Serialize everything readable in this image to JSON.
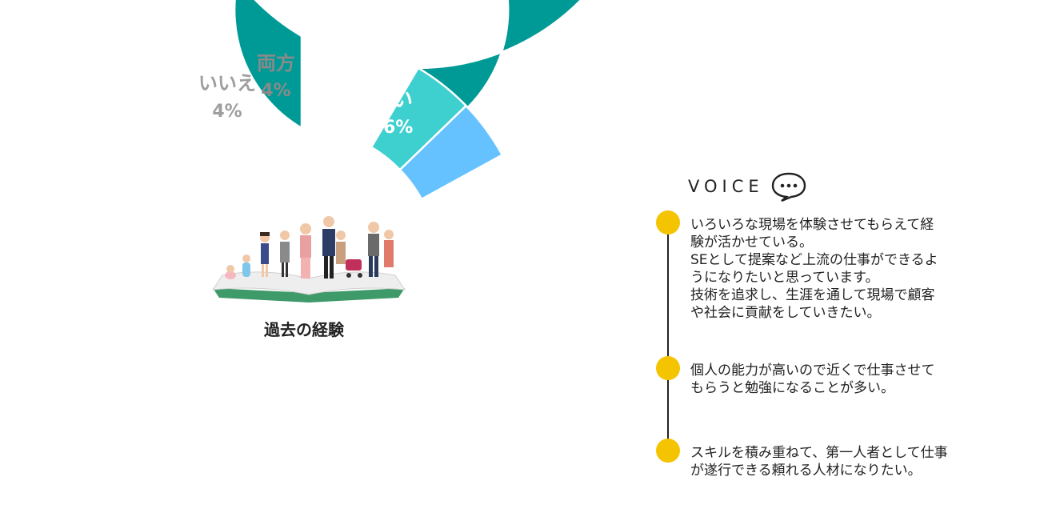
{
  "chart_data": {
    "type": "pie",
    "donut": true,
    "center_label": "過去の経験",
    "slices": [
      {
        "label": "はい",
        "value": 86,
        "value_label": "86%",
        "color": "#009a96",
        "label_color": "#ffffff"
      },
      {
        "label": "いいえ",
        "value": 4,
        "value_label": "4%",
        "color": "#3ecfcf",
        "label_color": "#9e9e9e"
      },
      {
        "label": "両方",
        "value": 4,
        "value_label": "4%",
        "color": "#66c2ff",
        "label_color": "#8a8a8a"
      }
    ]
  },
  "voice": {
    "title": "VOICE",
    "icon": "speech-bubble-icon",
    "accent_color": "#f4c400",
    "items": [
      {
        "text": "いろいろな現場を体験させてもらえて経\n験が活かせている。\nSEとして提案など上流の仕事ができるよ\nうになりたいと思っています。\n技術を追求し、生涯を通して現場で顧客\nや社会に貢献をしていきたい。"
      },
      {
        "text": "個人の能力が高いので近くで仕事させて\nもらうと勉強になることが多い。"
      },
      {
        "text": "スキルを積み重ねて、第一人者として仕事\nが遂行できる頼れる人材になりたい。"
      }
    ]
  }
}
